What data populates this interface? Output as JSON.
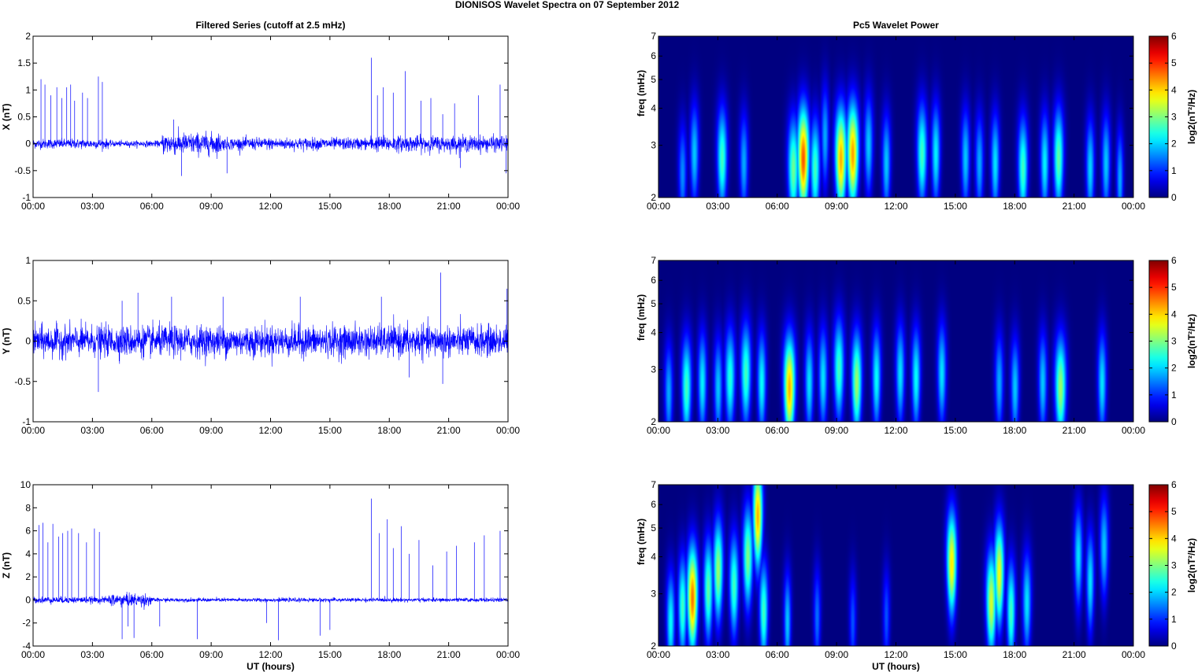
{
  "figure_title": "DIONISOS Wavelet Spectra on 07 September 2012",
  "chart_data": [
    {
      "type": "line",
      "title": "Filtered Series (cutoff at 2.5 mHz)",
      "xlabel": "",
      "ylabel": "X (nT)",
      "xlim": [
        0,
        24
      ],
      "ylim": [
        -1,
        2
      ],
      "xticklabels": [
        "00:00",
        "03:00",
        "06:00",
        "09:00",
        "12:00",
        "15:00",
        "18:00",
        "21:00",
        "00:00"
      ],
      "yticks": [
        -1,
        -0.5,
        0,
        0.5,
        1,
        1.5,
        2
      ],
      "color": "#0000ff",
      "noise_amplitude": [
        {
          "t0": 0,
          "t1": 3.8,
          "amp": 0.08
        },
        {
          "t0": 3.8,
          "t1": 6.5,
          "amp": 0.05
        },
        {
          "t0": 6.5,
          "t1": 9.5,
          "amp": 0.18
        },
        {
          "t0": 9.5,
          "t1": 17,
          "amp": 0.1
        },
        {
          "t0": 17,
          "t1": 24,
          "amp": 0.13
        }
      ],
      "spikes": [
        {
          "x": 0.4,
          "y": 1.2
        },
        {
          "x": 0.6,
          "y": 1.1
        },
        {
          "x": 0.9,
          "y": 0.9
        },
        {
          "x": 1.2,
          "y": 1.05
        },
        {
          "x": 1.45,
          "y": 0.85
        },
        {
          "x": 1.7,
          "y": 1.05
        },
        {
          "x": 1.9,
          "y": 1.1
        },
        {
          "x": 2.1,
          "y": 0.8
        },
        {
          "x": 2.5,
          "y": 0.95
        },
        {
          "x": 2.75,
          "y": 0.85
        },
        {
          "x": 3.3,
          "y": 1.25
        },
        {
          "x": 3.5,
          "y": 1.15
        },
        {
          "x": 7.1,
          "y": 0.45
        },
        {
          "x": 7.5,
          "y": -0.6
        },
        {
          "x": 9.8,
          "y": -0.55
        },
        {
          "x": 17.1,
          "y": 1.6
        },
        {
          "x": 17.4,
          "y": 0.9
        },
        {
          "x": 17.7,
          "y": 1.05
        },
        {
          "x": 18.2,
          "y": 0.95
        },
        {
          "x": 18.8,
          "y": 1.35
        },
        {
          "x": 19.6,
          "y": 0.8
        },
        {
          "x": 20.1,
          "y": 0.85
        },
        {
          "x": 20.7,
          "y": 0.55
        },
        {
          "x": 21.3,
          "y": 0.75
        },
        {
          "x": 21.6,
          "y": -0.45
        },
        {
          "x": 22.5,
          "y": 0.9
        },
        {
          "x": 23.6,
          "y": 1.1
        },
        {
          "x": 23.9,
          "y": -0.55
        }
      ]
    },
    {
      "type": "line",
      "title": "",
      "xlabel": "",
      "ylabel": "Y (nT)",
      "xlim": [
        0,
        24
      ],
      "ylim": [
        -1,
        1
      ],
      "xticklabels": [
        "00:00",
        "03:00",
        "06:00",
        "09:00",
        "12:00",
        "15:00",
        "18:00",
        "21:00",
        "00:00"
      ],
      "yticks": [
        -1,
        -0.5,
        0,
        0.5,
        1
      ],
      "color": "#0000ff",
      "noise_amplitude": [
        {
          "t0": 0,
          "t1": 24,
          "amp": 0.17
        }
      ],
      "spikes": [
        {
          "x": 3.3,
          "y": -0.63
        },
        {
          "x": 4.5,
          "y": 0.5
        },
        {
          "x": 5.3,
          "y": 0.6
        },
        {
          "x": 7.0,
          "y": 0.55
        },
        {
          "x": 9.6,
          "y": 0.55
        },
        {
          "x": 13.5,
          "y": 0.55
        },
        {
          "x": 17.6,
          "y": 0.55
        },
        {
          "x": 19.0,
          "y": -0.45
        },
        {
          "x": 20.6,
          "y": 0.85
        },
        {
          "x": 20.7,
          "y": -0.53
        },
        {
          "x": 23.95,
          "y": 0.65
        }
      ]
    },
    {
      "type": "line",
      "title": "",
      "xlabel": "UT (hours)",
      "ylabel": "Z (nT)",
      "xlim": [
        0,
        24
      ],
      "ylim": [
        -4,
        10
      ],
      "xticklabels": [
        "00:00",
        "03:00",
        "06:00",
        "09:00",
        "12:00",
        "15:00",
        "18:00",
        "21:00",
        "00:00"
      ],
      "yticks": [
        -4,
        -2,
        0,
        2,
        4,
        6,
        8,
        10
      ],
      "color": "#0000ff",
      "noise_amplitude": [
        {
          "t0": 0,
          "t1": 3.8,
          "amp": 0.25
        },
        {
          "t0": 3.8,
          "t1": 6.0,
          "amp": 0.5
        },
        {
          "t0": 6.0,
          "t1": 24,
          "amp": 0.15
        }
      ],
      "spikes": [
        {
          "x": 0.3,
          "y": 6.5
        },
        {
          "x": 0.5,
          "y": 6.7
        },
        {
          "x": 0.75,
          "y": 5.0
        },
        {
          "x": 1.0,
          "y": 6.6
        },
        {
          "x": 1.3,
          "y": 5.5
        },
        {
          "x": 1.5,
          "y": 5.8
        },
        {
          "x": 1.75,
          "y": 6.0
        },
        {
          "x": 1.95,
          "y": 6.2
        },
        {
          "x": 2.3,
          "y": 5.8
        },
        {
          "x": 2.7,
          "y": 5.0
        },
        {
          "x": 3.1,
          "y": 6.2
        },
        {
          "x": 3.35,
          "y": 5.9
        },
        {
          "x": 4.5,
          "y": -3.4
        },
        {
          "x": 4.8,
          "y": -2.3
        },
        {
          "x": 5.1,
          "y": -3.3
        },
        {
          "x": 6.4,
          "y": -2.3
        },
        {
          "x": 8.3,
          "y": -3.4
        },
        {
          "x": 11.8,
          "y": -2.0
        },
        {
          "x": 12.4,
          "y": -3.5
        },
        {
          "x": 14.5,
          "y": -3.1
        },
        {
          "x": 15.0,
          "y": -2.6
        },
        {
          "x": 17.1,
          "y": 8.8
        },
        {
          "x": 17.5,
          "y": 5.8
        },
        {
          "x": 17.9,
          "y": 7.0
        },
        {
          "x": 18.2,
          "y": 4.5
        },
        {
          "x": 18.6,
          "y": 6.4
        },
        {
          "x": 19.0,
          "y": 4.0
        },
        {
          "x": 19.5,
          "y": 5.2
        },
        {
          "x": 20.2,
          "y": 3.0
        },
        {
          "x": 20.9,
          "y": 4.2
        },
        {
          "x": 21.4,
          "y": 4.7
        },
        {
          "x": 22.3,
          "y": 5.0
        },
        {
          "x": 22.8,
          "y": 5.6
        },
        {
          "x": 23.6,
          "y": 6.0
        }
      ]
    },
    {
      "type": "heatmap",
      "title": "Pc5 Wavelet Power",
      "xlabel": "",
      "ylabel": "freq (mHz)",
      "xlim": [
        0,
        24
      ],
      "ylim": [
        2,
        7
      ],
      "log_y": true,
      "xticklabels": [
        "00:00",
        "03:00",
        "06:00",
        "09:00",
        "12:00",
        "15:00",
        "18:00",
        "21:00",
        "00:00"
      ],
      "yticks": [
        2,
        3,
        4,
        5,
        6,
        7
      ],
      "colorbar": {
        "label": "log2(nT²/Hz)",
        "min": 0,
        "max": 6,
        "ticks": [
          0,
          1,
          2,
          3,
          4,
          5,
          6
        ],
        "colormap": "jet"
      },
      "blobs": [
        {
          "t": 1.2,
          "f": 2.4,
          "p": 1.8,
          "w": 0.14
        },
        {
          "t": 1.8,
          "f": 2.8,
          "p": 2.2,
          "w": 0.14
        },
        {
          "t": 3.2,
          "f": 2.7,
          "p": 3.0,
          "w": 0.16
        },
        {
          "t": 4.3,
          "f": 2.6,
          "p": 2.0,
          "w": 0.14
        },
        {
          "t": 6.8,
          "f": 2.5,
          "p": 3.3,
          "w": 0.18
        },
        {
          "t": 7.3,
          "f": 2.7,
          "p": 5.4,
          "w": 0.18
        },
        {
          "t": 7.9,
          "f": 2.5,
          "p": 3.0,
          "w": 0.16
        },
        {
          "t": 8.4,
          "f": 3.2,
          "p": 2.0,
          "w": 0.12
        },
        {
          "t": 9.2,
          "f": 2.7,
          "p": 4.8,
          "w": 0.18
        },
        {
          "t": 9.8,
          "f": 2.8,
          "p": 4.9,
          "w": 0.18
        },
        {
          "t": 10.6,
          "f": 3.0,
          "p": 2.2,
          "w": 0.14
        },
        {
          "t": 11.5,
          "f": 2.6,
          "p": 2.2,
          "w": 0.14
        },
        {
          "t": 13.3,
          "f": 2.8,
          "p": 3.0,
          "w": 0.16
        },
        {
          "t": 14.0,
          "f": 2.8,
          "p": 2.5,
          "w": 0.14
        },
        {
          "t": 15.5,
          "f": 2.7,
          "p": 2.2,
          "w": 0.14
        },
        {
          "t": 16.2,
          "f": 2.6,
          "p": 2.0,
          "w": 0.14
        },
        {
          "t": 17.0,
          "f": 2.6,
          "p": 2.4,
          "w": 0.14
        },
        {
          "t": 18.4,
          "f": 2.5,
          "p": 3.0,
          "w": 0.16
        },
        {
          "t": 19.5,
          "f": 2.6,
          "p": 2.5,
          "w": 0.14
        },
        {
          "t": 20.2,
          "f": 2.7,
          "p": 3.2,
          "w": 0.16
        },
        {
          "t": 21.8,
          "f": 2.5,
          "p": 2.3,
          "w": 0.14
        },
        {
          "t": 22.6,
          "f": 2.6,
          "p": 2.2,
          "w": 0.14
        },
        {
          "t": 23.3,
          "f": 2.3,
          "p": 2.0,
          "w": 0.12
        }
      ]
    },
    {
      "type": "heatmap",
      "title": "",
      "xlabel": "",
      "ylabel": "freq (mHz)",
      "xlim": [
        0,
        24
      ],
      "ylim": [
        2,
        7
      ],
      "log_y": true,
      "xticklabels": [
        "00:00",
        "03:00",
        "06:00",
        "09:00",
        "12:00",
        "15:00",
        "18:00",
        "21:00",
        "00:00"
      ],
      "yticks": [
        2,
        3,
        4,
        5,
        6,
        7
      ],
      "colorbar": {
        "label": "log2(nT²/Hz)",
        "min": 0,
        "max": 6,
        "ticks": [
          0,
          1,
          2,
          3,
          4,
          5,
          6
        ],
        "colormap": "jet"
      },
      "blobs": [
        {
          "t": 0.5,
          "f": 2.5,
          "p": 2.0,
          "w": 0.14
        },
        {
          "t": 1.4,
          "f": 2.6,
          "p": 3.0,
          "w": 0.16
        },
        {
          "t": 2.2,
          "f": 2.7,
          "p": 2.5,
          "w": 0.14
        },
        {
          "t": 3.0,
          "f": 2.6,
          "p": 2.2,
          "w": 0.14
        },
        {
          "t": 3.6,
          "f": 2.8,
          "p": 2.8,
          "w": 0.16
        },
        {
          "t": 4.4,
          "f": 2.9,
          "p": 3.0,
          "w": 0.16
        },
        {
          "t": 5.2,
          "f": 2.7,
          "p": 2.6,
          "w": 0.14
        },
        {
          "t": 6.6,
          "f": 2.6,
          "p": 4.8,
          "w": 0.18
        },
        {
          "t": 7.6,
          "f": 2.7,
          "p": 2.4,
          "w": 0.14
        },
        {
          "t": 8.3,
          "f": 2.8,
          "p": 2.4,
          "w": 0.14
        },
        {
          "t": 9.1,
          "f": 3.0,
          "p": 3.0,
          "w": 0.16
        },
        {
          "t": 10.0,
          "f": 2.7,
          "p": 3.6,
          "w": 0.16
        },
        {
          "t": 11.0,
          "f": 2.8,
          "p": 2.6,
          "w": 0.14
        },
        {
          "t": 12.2,
          "f": 2.9,
          "p": 2.4,
          "w": 0.14
        },
        {
          "t": 13.0,
          "f": 2.8,
          "p": 2.6,
          "w": 0.14
        },
        {
          "t": 14.3,
          "f": 2.9,
          "p": 2.4,
          "w": 0.14
        },
        {
          "t": 17.2,
          "f": 2.7,
          "p": 2.0,
          "w": 0.14
        },
        {
          "t": 18.0,
          "f": 2.6,
          "p": 2.2,
          "w": 0.14
        },
        {
          "t": 19.4,
          "f": 2.7,
          "p": 2.2,
          "w": 0.14
        },
        {
          "t": 20.3,
          "f": 2.6,
          "p": 3.6,
          "w": 0.18
        },
        {
          "t": 22.4,
          "f": 2.7,
          "p": 2.4,
          "w": 0.14
        }
      ]
    },
    {
      "type": "heatmap",
      "title": "",
      "xlabel": "UT (hours)",
      "ylabel": "freq (mHz)",
      "xlim": [
        0,
        24
      ],
      "ylim": [
        2,
        7
      ],
      "log_y": true,
      "xticklabels": [
        "00:00",
        "03:00",
        "06:00",
        "09:00",
        "12:00",
        "15:00",
        "18:00",
        "21:00",
        "00:00"
      ],
      "yticks": [
        2,
        3,
        4,
        5,
        6,
        7
      ],
      "colorbar": {
        "label": "log2(nT²/Hz)",
        "min": 0,
        "max": 6,
        "ticks": [
          0,
          1,
          2,
          3,
          4,
          5,
          6
        ],
        "colormap": "jet"
      },
      "blobs": [
        {
          "t": 0.6,
          "f": 2.4,
          "p": 2.6,
          "w": 0.14
        },
        {
          "t": 1.2,
          "f": 2.7,
          "p": 3.0,
          "w": 0.14
        },
        {
          "t": 1.7,
          "f": 2.9,
          "p": 5.2,
          "w": 0.16
        },
        {
          "t": 2.5,
          "f": 3.1,
          "p": 3.2,
          "w": 0.14
        },
        {
          "t": 3.0,
          "f": 3.6,
          "p": 3.6,
          "w": 0.14
        },
        {
          "t": 3.8,
          "f": 3.2,
          "p": 3.0,
          "w": 0.14
        },
        {
          "t": 4.5,
          "f": 4.0,
          "p": 3.4,
          "w": 0.14
        },
        {
          "t": 5.0,
          "f": 5.5,
          "p": 4.8,
          "w": 0.12
        },
        {
          "t": 5.3,
          "f": 2.6,
          "p": 3.0,
          "w": 0.14
        },
        {
          "t": 6.5,
          "f": 2.4,
          "p": 2.2,
          "w": 0.12
        },
        {
          "t": 8.0,
          "f": 2.5,
          "p": 1.6,
          "w": 0.12
        },
        {
          "t": 9.8,
          "f": 2.4,
          "p": 1.4,
          "w": 0.12
        },
        {
          "t": 11.5,
          "f": 2.5,
          "p": 1.4,
          "w": 0.12
        },
        {
          "t": 14.8,
          "f": 3.8,
          "p": 4.4,
          "w": 0.14
        },
        {
          "t": 16.8,
          "f": 2.8,
          "p": 4.0,
          "w": 0.16
        },
        {
          "t": 17.2,
          "f": 3.5,
          "p": 4.2,
          "w": 0.14
        },
        {
          "t": 17.8,
          "f": 2.6,
          "p": 3.0,
          "w": 0.14
        },
        {
          "t": 18.6,
          "f": 2.8,
          "p": 2.4,
          "w": 0.14
        },
        {
          "t": 21.2,
          "f": 4.0,
          "p": 2.4,
          "w": 0.12
        },
        {
          "t": 21.8,
          "f": 3.3,
          "p": 2.4,
          "w": 0.12
        },
        {
          "t": 22.5,
          "f": 4.3,
          "p": 2.2,
          "w": 0.12
        }
      ]
    }
  ]
}
